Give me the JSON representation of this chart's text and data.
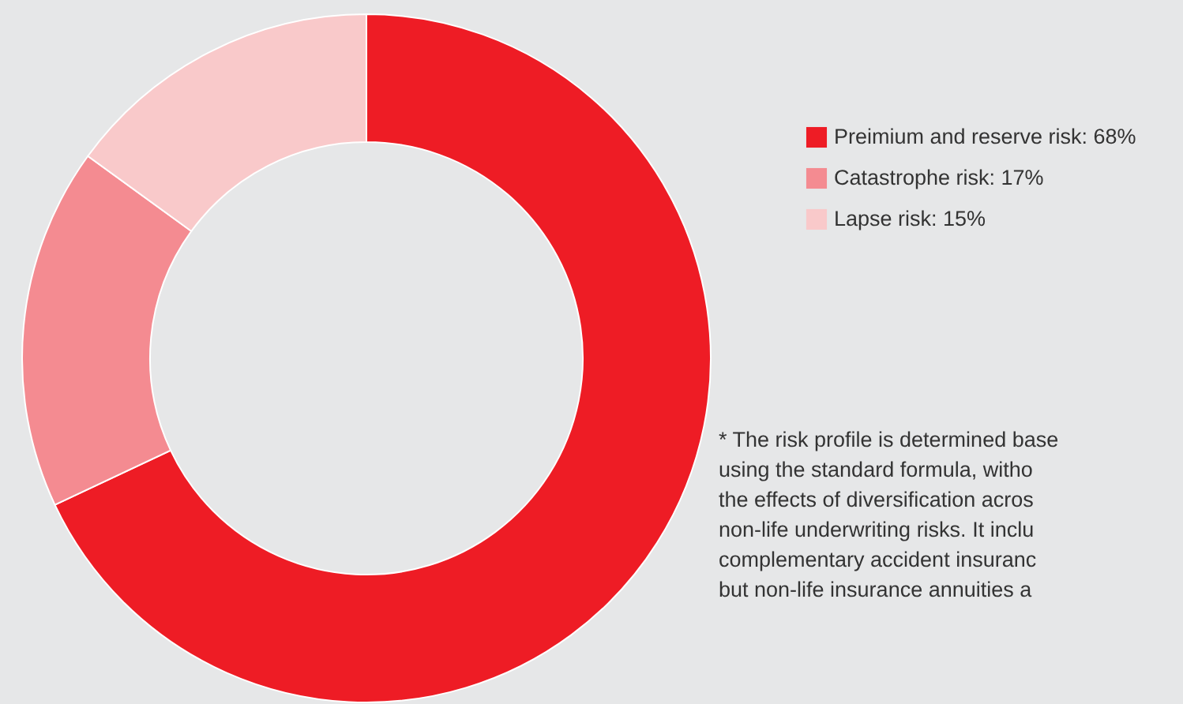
{
  "chart_data": {
    "type": "donut",
    "categories": [
      "Preimium and reserve risk: 68%",
      "Catastrophe risk: 17%",
      "Lapse risk: 15%"
    ],
    "values": [
      68,
      17,
      15
    ],
    "colors": [
      "#ee1c25",
      "#f48b91",
      "#f9c9ca"
    ],
    "legend": "right",
    "annotations": [
      "* The risk profile is determined base\nusing the standard formula, witho\nthe effects of diversification acros\nnon-life underwriting risks. It inclu\ncomplementary accident insuranc\nbut non-life insurance annuities a"
    ]
  }
}
